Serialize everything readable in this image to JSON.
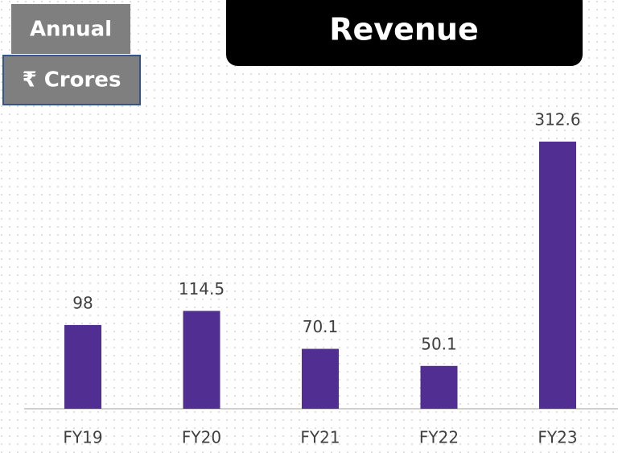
{
  "chart_data": {
    "type": "bar",
    "title": "Revenue",
    "annotations": [
      "Annual",
      "₹ Crores"
    ],
    "categories": [
      "FY19",
      "FY20",
      "FY21",
      "FY22",
      "FY23"
    ],
    "values": [
      98,
      114.5,
      70.1,
      50.1,
      312.6
    ],
    "color": "#512e91"
  }
}
